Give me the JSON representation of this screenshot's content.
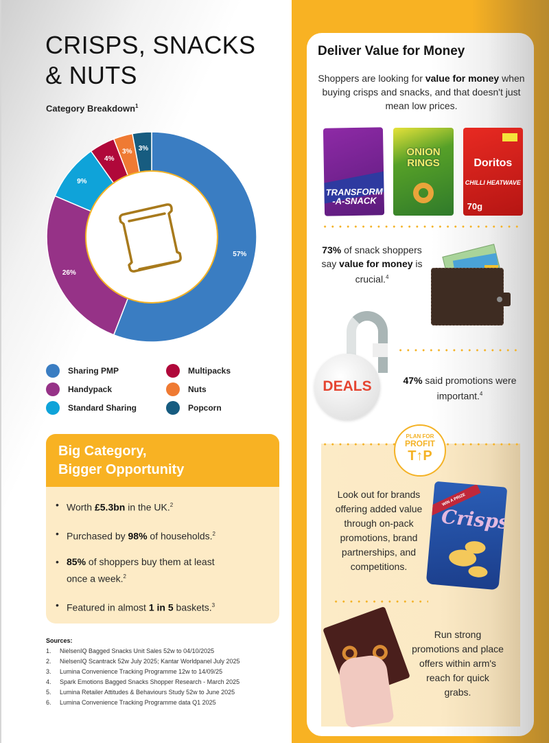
{
  "left": {
    "title": "CRISPS, SNACKS & NUTS",
    "subtitle": "Category Breakdown",
    "subtitle_ref": "1",
    "center_icon": "snack-bag-icon",
    "legend": [
      {
        "label": "Sharing PMP",
        "color": "#3a7dc2"
      },
      {
        "label": "Multipacks",
        "color": "#b0083a"
      },
      {
        "label": "Handypack",
        "color": "#963287"
      },
      {
        "label": "Nuts",
        "color": "#ef7a33"
      },
      {
        "label": "Standard Sharing",
        "color": "#0fa3d9"
      },
      {
        "label": "Popcorn",
        "color": "#175c80"
      }
    ]
  },
  "chart_data": {
    "type": "pie",
    "title": "Category Breakdown",
    "donut": true,
    "categories": [
      "Sharing PMP",
      "Handypack",
      "Standard Sharing",
      "Multipacks",
      "Nuts",
      "Popcorn"
    ],
    "values": [
      57,
      26,
      9,
      4,
      3,
      3
    ],
    "labels": [
      "57%",
      "26%",
      "9%",
      "4%",
      "3%",
      "3%"
    ],
    "colors": [
      "#3a7dc2",
      "#963287",
      "#0fa3d9",
      "#b0083a",
      "#ef7a33",
      "#175c80"
    ],
    "legend_position": "bottom"
  },
  "opportunity": {
    "heading_line1": "Big Category,",
    "heading_line2": "Bigger Opportunity",
    "items": [
      {
        "pre": "Worth ",
        "bold": "£5.3bn",
        "post": " in the UK.",
        "ref": "2"
      },
      {
        "pre": "Purchased by ",
        "bold": "98%",
        "post": " of households.",
        "ref": "2"
      },
      {
        "pre": "",
        "bold": "85%",
        "post": " of shoppers buy them at least once a week.",
        "ref": "2"
      },
      {
        "pre": "Featured in almost ",
        "bold": "1 in 5",
        "post": " baskets.",
        "ref": "3"
      }
    ]
  },
  "sources": {
    "heading": "Sources:",
    "items": [
      {
        "n": "1.",
        "text": "NielsenIQ Bagged Snacks Unit Sales 52w to 04/10/2025"
      },
      {
        "n": "2.",
        "text": "NielsenIQ Scantrack 52w July 2025; Kantar Worldpanel July 2025"
      },
      {
        "n": "3.",
        "text": "Lumina Convenience Tracking Programme 12w to 14/09/25"
      },
      {
        "n": "4.",
        "text": "Spark Emotions Bagged Snacks Shopper Research - March 2025"
      },
      {
        "n": "5.",
        "text": "Lumina Retailer Attitudes & Behaviours Study 52w to June 2025"
      },
      {
        "n": "6.",
        "text": "Lumina Convenience Tracking Programme data Q1 2025"
      }
    ]
  },
  "right": {
    "title": "Deliver Value for Money",
    "intro_pre": "Shoppers are looking for ",
    "intro_bold": "value for money",
    "intro_post": " when buying crisps and snacks, and that doesn't just mean low prices.",
    "packs": [
      {
        "name": "TRANSFORM-A-SNACK",
        "line1": "TRANSFORM",
        "line2": "-A-SNACK"
      },
      {
        "name": "ONION RINGS",
        "line1": "ONION",
        "line2": "RINGS"
      },
      {
        "name": "Doritos",
        "line1": "Doritos",
        "line2": "CHILLI HEATWAVE",
        "weight": "70g"
      }
    ],
    "stat1_bold": "73%",
    "stat1_mid": " of snack shoppers say ",
    "stat1_bold2": "value for money",
    "stat1_post": " is crucial.",
    "stat1_ref": "4",
    "deals_label": "DEALS",
    "stat2_bold": "47%",
    "stat2_post": " said promotions were important.",
    "stat2_ref": "4",
    "tip_badge": {
      "line1": "PLAN FOR",
      "line2": "PROFIT",
      "line3": "T↑P"
    },
    "tip1": "Look out for brands offering added value through on-pack promotions, brand partnerships, and competitions.",
    "crisps_bag": {
      "ribbon": "WIN A PRIZE",
      "word": "Crisps"
    },
    "tip2": "Run strong promotions and place offers within arm's reach for quick grabs."
  }
}
